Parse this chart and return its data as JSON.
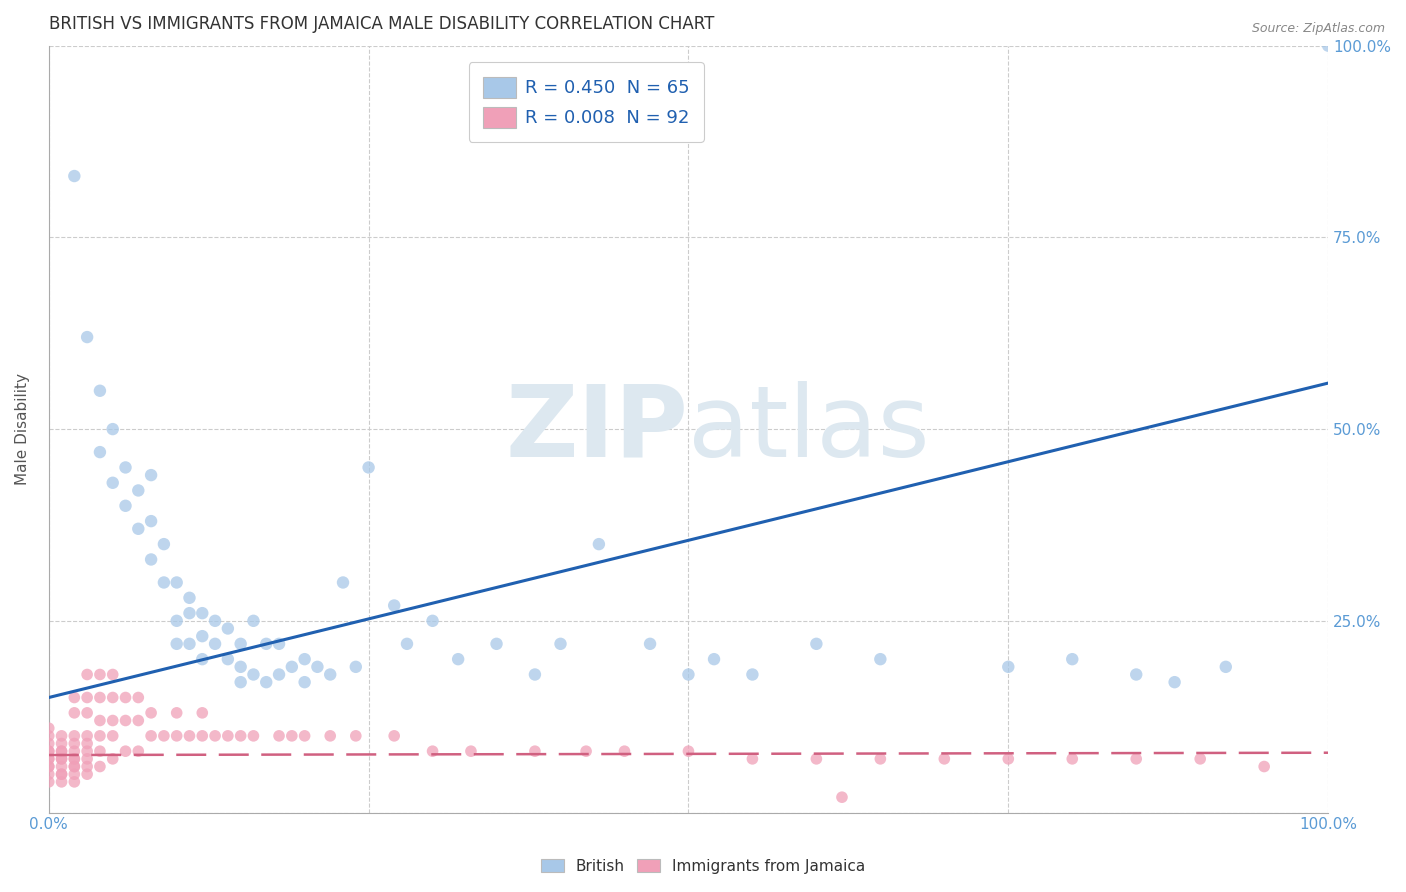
{
  "title": "BRITISH VS IMMIGRANTS FROM JAMAICA MALE DISABILITY CORRELATION CHART",
  "source": "Source: ZipAtlas.com",
  "ylabel": "Male Disability",
  "legend_british": "British",
  "legend_immigrants": "Immigrants from Jamaica",
  "R_british": 0.45,
  "N_british": 65,
  "R_immigrants": 0.008,
  "N_immigrants": 92,
  "british_color": "#a8c8e8",
  "immigrants_color": "#f0a0b8",
  "british_line_color": "#2060b0",
  "immigrants_line_color": "#d06080",
  "watermark_color": "#dde8f0",
  "british_x": [
    0.02,
    0.03,
    0.04,
    0.04,
    0.05,
    0.05,
    0.06,
    0.06,
    0.07,
    0.07,
    0.08,
    0.08,
    0.08,
    0.09,
    0.09,
    0.1,
    0.1,
    0.1,
    0.11,
    0.11,
    0.11,
    0.12,
    0.12,
    0.12,
    0.13,
    0.13,
    0.14,
    0.14,
    0.15,
    0.15,
    0.15,
    0.16,
    0.16,
    0.17,
    0.17,
    0.18,
    0.18,
    0.19,
    0.2,
    0.2,
    0.21,
    0.22,
    0.23,
    0.24,
    0.25,
    0.27,
    0.28,
    0.3,
    0.32,
    0.35,
    0.38,
    0.4,
    0.43,
    0.47,
    0.5,
    0.52,
    0.55,
    0.6,
    0.65,
    0.75,
    0.8,
    0.85,
    0.88,
    0.92,
    1.0
  ],
  "british_y": [
    0.83,
    0.62,
    0.55,
    0.47,
    0.5,
    0.43,
    0.45,
    0.4,
    0.42,
    0.37,
    0.38,
    0.33,
    0.44,
    0.35,
    0.3,
    0.3,
    0.25,
    0.22,
    0.28,
    0.26,
    0.22,
    0.26,
    0.23,
    0.2,
    0.25,
    0.22,
    0.24,
    0.2,
    0.22,
    0.19,
    0.17,
    0.25,
    0.18,
    0.22,
    0.17,
    0.22,
    0.18,
    0.19,
    0.2,
    0.17,
    0.19,
    0.18,
    0.3,
    0.19,
    0.45,
    0.27,
    0.22,
    0.25,
    0.2,
    0.22,
    0.18,
    0.22,
    0.35,
    0.22,
    0.18,
    0.2,
    0.18,
    0.22,
    0.2,
    0.19,
    0.2,
    0.18,
    0.17,
    0.19,
    1.0
  ],
  "immigrants_x": [
    0.0,
    0.0,
    0.0,
    0.0,
    0.0,
    0.0,
    0.0,
    0.0,
    0.0,
    0.0,
    0.0,
    0.01,
    0.01,
    0.01,
    0.01,
    0.01,
    0.01,
    0.01,
    0.01,
    0.01,
    0.01,
    0.02,
    0.02,
    0.02,
    0.02,
    0.02,
    0.02,
    0.02,
    0.02,
    0.02,
    0.02,
    0.02,
    0.03,
    0.03,
    0.03,
    0.03,
    0.03,
    0.03,
    0.03,
    0.03,
    0.03,
    0.04,
    0.04,
    0.04,
    0.04,
    0.04,
    0.04,
    0.05,
    0.05,
    0.05,
    0.05,
    0.05,
    0.06,
    0.06,
    0.06,
    0.07,
    0.07,
    0.07,
    0.08,
    0.08,
    0.09,
    0.1,
    0.1,
    0.11,
    0.12,
    0.12,
    0.13,
    0.14,
    0.15,
    0.16,
    0.18,
    0.19,
    0.2,
    0.22,
    0.24,
    0.27,
    0.3,
    0.33,
    0.38,
    0.42,
    0.45,
    0.5,
    0.55,
    0.6,
    0.62,
    0.65,
    0.7,
    0.75,
    0.8,
    0.85,
    0.9,
    0.95
  ],
  "immigrants_y": [
    0.04,
    0.05,
    0.06,
    0.06,
    0.07,
    0.07,
    0.08,
    0.08,
    0.09,
    0.1,
    0.11,
    0.04,
    0.05,
    0.05,
    0.06,
    0.07,
    0.07,
    0.08,
    0.08,
    0.09,
    0.1,
    0.04,
    0.05,
    0.06,
    0.06,
    0.07,
    0.07,
    0.08,
    0.09,
    0.1,
    0.13,
    0.15,
    0.05,
    0.06,
    0.07,
    0.08,
    0.09,
    0.1,
    0.13,
    0.15,
    0.18,
    0.06,
    0.08,
    0.1,
    0.12,
    0.15,
    0.18,
    0.07,
    0.1,
    0.12,
    0.15,
    0.18,
    0.08,
    0.12,
    0.15,
    0.08,
    0.12,
    0.15,
    0.1,
    0.13,
    0.1,
    0.1,
    0.13,
    0.1,
    0.1,
    0.13,
    0.1,
    0.1,
    0.1,
    0.1,
    0.1,
    0.1,
    0.1,
    0.1,
    0.1,
    0.1,
    0.08,
    0.08,
    0.08,
    0.08,
    0.08,
    0.08,
    0.07,
    0.07,
    0.02,
    0.07,
    0.07,
    0.07,
    0.07,
    0.07,
    0.07,
    0.06
  ],
  "british_line_x0": 0.0,
  "british_line_y0": 0.15,
  "british_line_x1": 1.0,
  "british_line_y1": 0.56,
  "immigrants_line_x0": 0.0,
  "immigrants_line_y0": 0.075,
  "immigrants_line_x1": 1.0,
  "immigrants_line_y1": 0.078,
  "xlim": [
    0.0,
    1.0
  ],
  "ylim": [
    0.0,
    1.0
  ],
  "yticks": [
    0.0,
    0.25,
    0.5,
    0.75,
    1.0
  ],
  "ytick_labels": [
    "",
    "25.0%",
    "50.0%",
    "75.0%",
    "100.0%"
  ],
  "xtick_positions": [
    0.0,
    0.25,
    0.5,
    0.75,
    1.0
  ],
  "xtick_labels_all": [
    "0.0%",
    "",
    "",
    "",
    "100.0%"
  ],
  "grid_color": "#cccccc",
  "background_color": "#ffffff",
  "title_color": "#333333",
  "axis_label_color": "#555555",
  "tick_color": "#5b9bd5"
}
